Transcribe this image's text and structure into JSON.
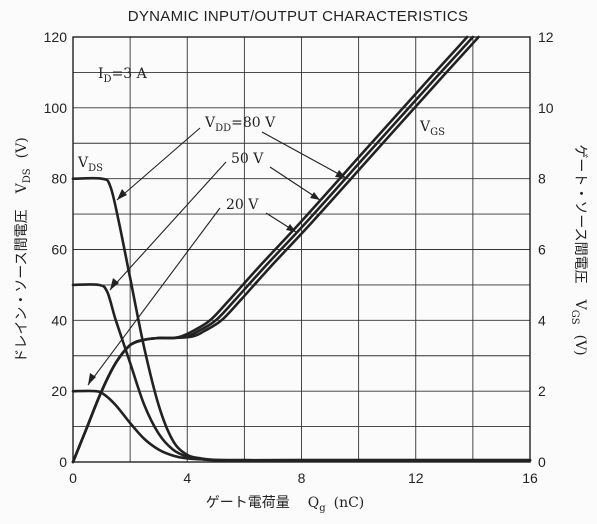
{
  "chart_data": {
    "type": "line",
    "title": "DYNAMIC INPUT/OUTPUT CHARACTERISTICS",
    "condition": "I_D=3 A",
    "xlabel": "ゲート電荷量　Q_g　(nC)",
    "ylabel_left": "ドレイン・ソース間電圧　V_DS　(V)",
    "ylabel_right": "ゲート・ソース間電圧　V_GS　(V)",
    "xlim": [
      0,
      16
    ],
    "ylim_left": [
      0,
      120
    ],
    "ylim_right": [
      0,
      12
    ],
    "x_ticks": [
      "0",
      "4",
      "8",
      "12",
      "16"
    ],
    "y_ticks_left": [
      "0",
      "20",
      "40",
      "60",
      "80",
      "100",
      "120"
    ],
    "y_ticks_right": [
      "0",
      "2",
      "4",
      "6",
      "8",
      "10",
      "12"
    ],
    "grid": true,
    "annotations": {
      "vdd80": "V_DD=80 V",
      "vdd50": "50 V",
      "vdd20": "20 V",
      "vds": "V_DS",
      "vgs": "V_GS"
    },
    "series": [
      {
        "axis": "left",
        "x": [
          0,
          1.0,
          1.3,
          1.6,
          2.0,
          2.5,
          3.0,
          3.5,
          4.0,
          4.5,
          5.0,
          6.0,
          8.0,
          16.0
        ],
        "values": [
          80,
          80,
          78,
          68,
          52,
          32,
          16,
          6,
          2,
          1,
          0.6,
          0.5,
          0.5,
          0.5
        ]
      },
      {
        "axis": "left",
        "x": [
          0,
          0.9,
          1.2,
          1.5,
          2.0,
          2.5,
          3.0,
          3.5,
          4.0,
          4.5,
          5.0,
          6.0,
          8.0,
          16.0
        ],
        "values": [
          50,
          50,
          48,
          40,
          28,
          16,
          8,
          3.5,
          1.5,
          0.8,
          0.5,
          0.5,
          0.5,
          0.5
        ]
      },
      {
        "axis": "left",
        "x": [
          0,
          0.8,
          1.1,
          1.5,
          2.0,
          2.5,
          3.0,
          3.5,
          4.0,
          5.0,
          6.0,
          8.0,
          16.0
        ],
        "values": [
          20,
          20,
          19,
          16,
          11,
          6.5,
          3.5,
          1.8,
          1.0,
          0.6,
          0.5,
          0.5,
          0.5
        ]
      },
      {
        "axis": "right",
        "x": [
          0,
          0.5,
          1.0,
          1.5,
          2.0,
          2.5,
          3.0,
          3.5,
          3.8,
          4.2,
          4.8,
          5.5,
          6.5,
          8.0,
          10.0,
          12.0,
          13.8
        ],
        "values": [
          0,
          1.0,
          2.0,
          2.8,
          3.3,
          3.45,
          3.5,
          3.5,
          3.55,
          3.7,
          4.0,
          4.6,
          5.5,
          6.8,
          8.6,
          10.4,
          12.0
        ]
      },
      {
        "axis": "right",
        "x": [
          0,
          0.5,
          1.0,
          1.5,
          2.0,
          2.5,
          3.0,
          3.5,
          4.0,
          4.4,
          5.0,
          5.7,
          6.7,
          8.2,
          10.2,
          12.2,
          14.0
        ],
        "values": [
          0,
          1.0,
          2.0,
          2.8,
          3.3,
          3.45,
          3.5,
          3.5,
          3.55,
          3.7,
          4.0,
          4.6,
          5.5,
          6.8,
          8.6,
          10.4,
          12.0
        ]
      },
      {
        "axis": "right",
        "x": [
          0,
          0.5,
          1.0,
          1.5,
          2.0,
          2.5,
          3.0,
          3.5,
          4.2,
          4.6,
          5.2,
          5.9,
          6.9,
          8.4,
          10.4,
          12.4,
          14.2
        ],
        "values": [
          0,
          1.0,
          2.0,
          2.8,
          3.3,
          3.45,
          3.5,
          3.5,
          3.55,
          3.7,
          4.0,
          4.6,
          5.5,
          6.8,
          8.6,
          10.4,
          12.0
        ]
      }
    ]
  }
}
